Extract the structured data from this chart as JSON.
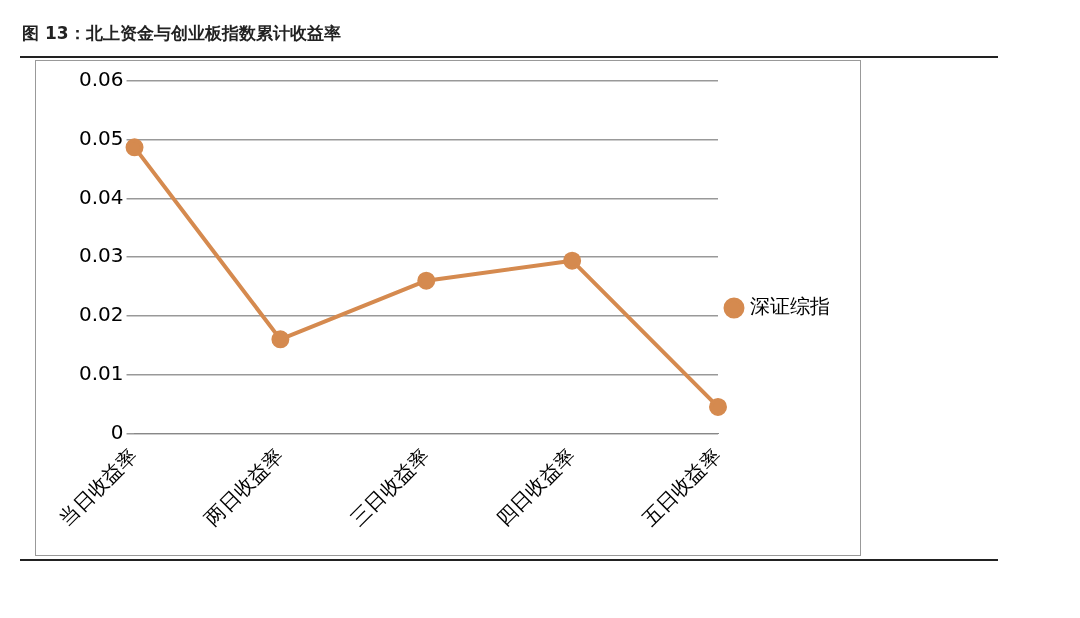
{
  "chart_data": {
    "type": "line",
    "title": "图 13：北上资金与创业板指数累计收益率",
    "categories": [
      "当日收益率",
      "两日收益率",
      "三日收益率",
      "四日收益率",
      "五日收益率"
    ],
    "series": [
      {
        "name": "深证综指",
        "color": "#d58a4f",
        "values": [
          0.0487,
          0.016,
          0.026,
          0.0294,
          0.0045
        ]
      }
    ],
    "ylim": [
      0,
      0.06
    ],
    "yticks": [
      0,
      {
        "value": 0.01,
        "label": "0.01"
      },
      {
        "value": 0.02,
        "label": "0.02"
      },
      {
        "value": 0.03,
        "label": "0.03"
      },
      {
        "value": 0.04,
        "label": "0.04"
      },
      {
        "value": 0.05,
        "label": "0.05"
      },
      {
        "value": 0.06,
        "label": "0.06"
      }
    ],
    "grid": "y",
    "legend": "right",
    "marker": "circle",
    "line_style": "solid"
  }
}
